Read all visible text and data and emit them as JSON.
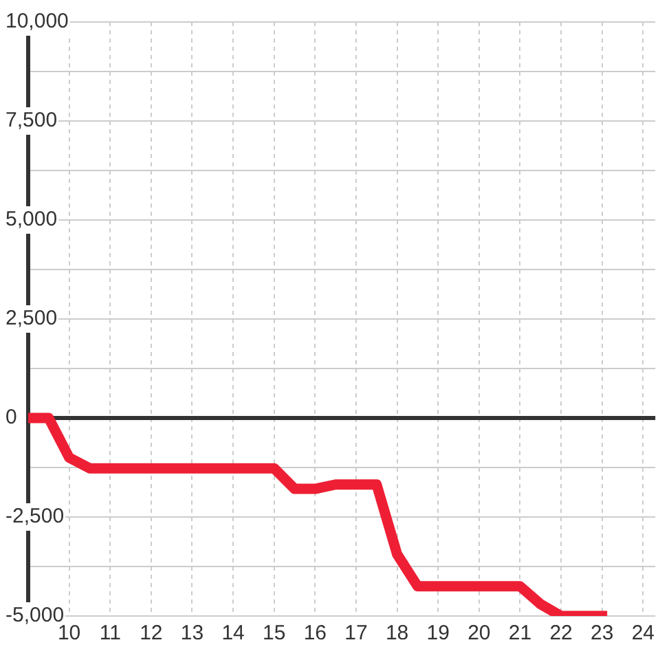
{
  "chart_data": {
    "type": "line",
    "x": [
      9,
      9.5,
      10,
      10.5,
      15,
      15.5,
      16,
      16.5,
      17.5,
      18,
      18.5,
      21,
      21.5,
      22,
      23
    ],
    "values": [
      0,
      0,
      -1000,
      -1270,
      -1270,
      -1790,
      -1790,
      -1680,
      -1680,
      -3440,
      -4250,
      -4250,
      -4700,
      -5000,
      -5000
    ],
    "color": "#ee1f35",
    "xlim": [
      9,
      24.3
    ],
    "xticks": [
      10,
      11,
      12,
      13,
      14,
      15,
      16,
      17,
      18,
      19,
      20,
      21,
      22,
      23,
      24
    ],
    "ylim": [
      -5000,
      10000
    ],
    "yticks": [
      {
        "value": 10000,
        "label": "10,000"
      },
      {
        "value": 8750,
        "label": null
      },
      {
        "value": 7500,
        "label": "7,500"
      },
      {
        "value": 6250,
        "label": null
      },
      {
        "value": 5000,
        "label": "5,000"
      },
      {
        "value": 3750,
        "label": null
      },
      {
        "value": 2500,
        "label": "2,500"
      },
      {
        "value": 1250,
        "label": null
      },
      0,
      {
        "value": -1250,
        "label": null
      },
      {
        "value": -2500,
        "label": "-2,500"
      },
      {
        "value": -3750,
        "label": null
      },
      {
        "value": -5000,
        "label": "-5,000"
      }
    ],
    "grid": true,
    "legend": false,
    "marker": "none",
    "line_style": "solid",
    "ref_lines": [
      {
        "axis": "y",
        "value": 0,
        "color": "#333333"
      }
    ]
  }
}
